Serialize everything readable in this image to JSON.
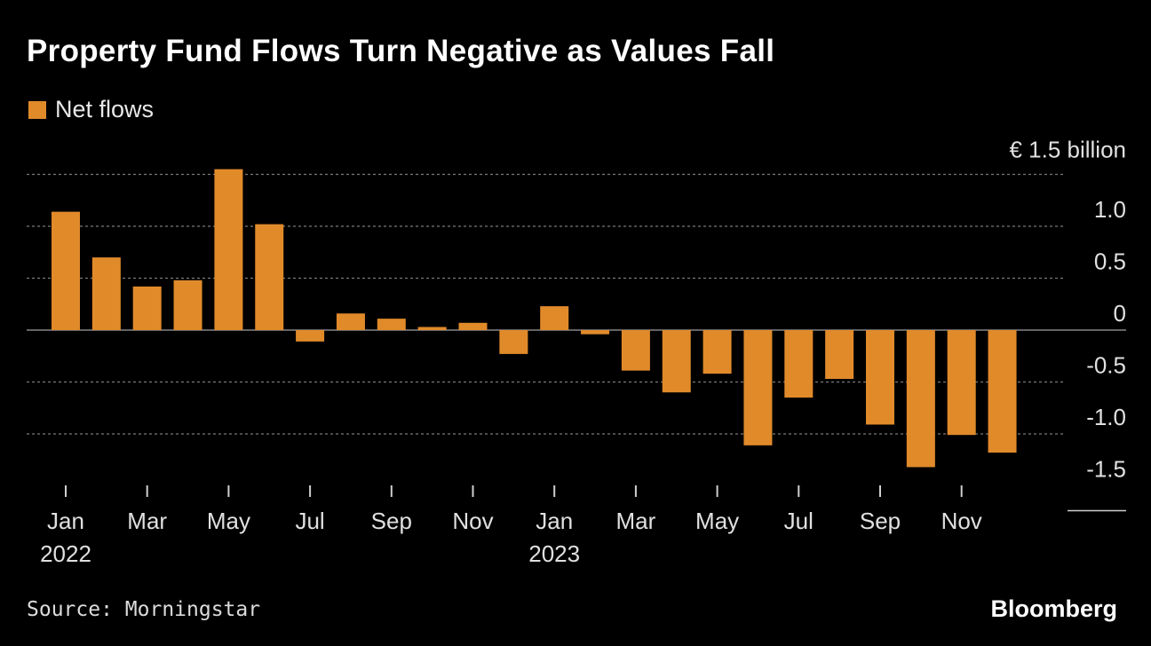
{
  "chart_data": {
    "type": "bar",
    "title": "Property Fund Flows Turn Negative as Values Fall",
    "legend": [
      {
        "name": "Net flows",
        "color": "#e08a2a"
      }
    ],
    "unit_label": "€ 1.5 billion",
    "categories": [
      "Jan 2022",
      "Feb 2022",
      "Mar 2022",
      "Apr 2022",
      "May 2022",
      "Jun 2022",
      "Jul 2022",
      "Aug 2022",
      "Sep 2022",
      "Oct 2022",
      "Nov 2022",
      "Dec 2022",
      "Jan 2023",
      "Feb 2023",
      "Mar 2023",
      "Apr 2023",
      "May 2023",
      "Jun 2023",
      "Jul 2023",
      "Aug 2023",
      "Sep 2023",
      "Oct 2023",
      "Nov 2023",
      "Dec 2023"
    ],
    "series": [
      {
        "name": "Net flows",
        "color": "#e08a2a",
        "values": [
          1.14,
          0.7,
          0.42,
          0.48,
          1.55,
          1.02,
          -0.11,
          0.16,
          0.11,
          0.03,
          0.07,
          -0.23,
          0.23,
          -0.04,
          -0.39,
          -0.6,
          -0.42,
          -1.11,
          -0.65,
          -0.47,
          -0.91,
          -1.32,
          -1.01,
          -1.18
        ]
      }
    ],
    "y_ticks": [
      {
        "value": 1.0,
        "label": "1.0"
      },
      {
        "value": 0.5,
        "label": "0.5"
      },
      {
        "value": 0,
        "label": "0"
      },
      {
        "value": -0.5,
        "label": "-0.5"
      },
      {
        "value": -1.0,
        "label": "-1.0"
      },
      {
        "value": -1.5,
        "label": "-1.5"
      }
    ],
    "x_ticks": [
      {
        "index": 0,
        "label": "Jan",
        "year": "2022"
      },
      {
        "index": 2,
        "label": "Mar"
      },
      {
        "index": 4,
        "label": "May"
      },
      {
        "index": 6,
        "label": "Jul"
      },
      {
        "index": 8,
        "label": "Sep"
      },
      {
        "index": 10,
        "label": "Nov"
      },
      {
        "index": 12,
        "label": "Jan",
        "year": "2023"
      },
      {
        "index": 14,
        "label": "Mar"
      },
      {
        "index": 16,
        "label": "May"
      },
      {
        "index": 18,
        "label": "Jul"
      },
      {
        "index": 20,
        "label": "Sep"
      },
      {
        "index": 22,
        "label": "Nov"
      }
    ],
    "ylim": [
      -1.5,
      1.5
    ],
    "grid": true
  },
  "source": "Source: Morningstar",
  "brand": "Bloomberg"
}
